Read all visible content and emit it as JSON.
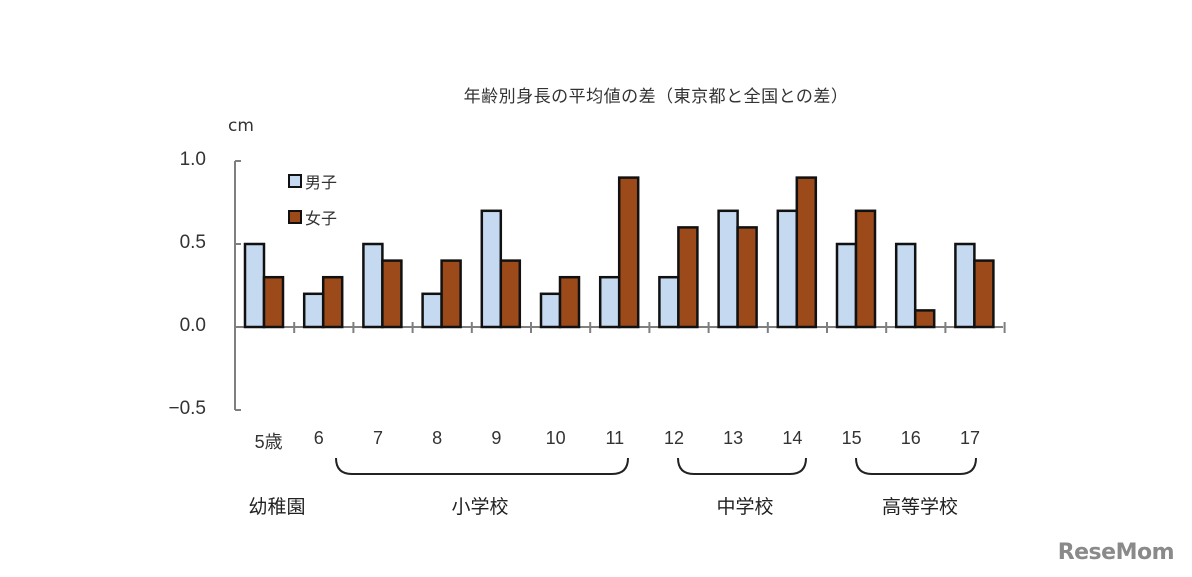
{
  "title": "年齢別身長の平均値の差（東京都と全国との差）",
  "unit": "cm",
  "legend": [
    {
      "label": "男子",
      "color": "#c5d9f1"
    },
    {
      "label": "女子",
      "color": "#9c4a1a"
    }
  ],
  "y_ticks": [
    "1.0",
    "0.5",
    "0.0",
    "−0.5"
  ],
  "x_labels": [
    "5歳",
    "6",
    "7",
    "8",
    "9",
    "10",
    "11",
    "12",
    "13",
    "14",
    "15",
    "16",
    "17"
  ],
  "school_groups": [
    {
      "label": "幼稚園"
    },
    {
      "label": "小学校"
    },
    {
      "label": "中学校"
    },
    {
      "label": "高等学校"
    }
  ],
  "logo": "ReseMom",
  "chart_data": {
    "type": "bar",
    "title": "年齢別身長の平均値の差（東京都と全国との差）",
    "xlabel": "",
    "ylabel": "cm",
    "ylim": [
      -0.5,
      1.0
    ],
    "y_ticks": [
      1.0,
      0.5,
      0.0,
      -0.5
    ],
    "grid": false,
    "legend_position": "upper-left inside",
    "categories": [
      "5歳",
      "6",
      "7",
      "8",
      "9",
      "10",
      "11",
      "12",
      "13",
      "14",
      "15",
      "16",
      "17"
    ],
    "category_groups": [
      {
        "label": "幼稚園",
        "categories": [
          "5歳"
        ]
      },
      {
        "label": "小学校",
        "categories": [
          "6",
          "7",
          "8",
          "9",
          "10",
          "11"
        ]
      },
      {
        "label": "中学校",
        "categories": [
          "12",
          "13",
          "14"
        ]
      },
      {
        "label": "高等学校",
        "categories": [
          "15",
          "16",
          "17"
        ]
      }
    ],
    "series": [
      {
        "name": "男子",
        "color": "#c5d9f1",
        "values": [
          0.5,
          0.2,
          0.5,
          0.2,
          0.7,
          0.2,
          0.3,
          0.3,
          0.7,
          0.7,
          0.5,
          0.5,
          0.5
        ]
      },
      {
        "name": "女子",
        "color": "#9c4a1a",
        "values": [
          0.3,
          0.3,
          0.4,
          0.4,
          0.4,
          0.3,
          0.9,
          0.6,
          0.6,
          0.9,
          0.7,
          0.1,
          0.4
        ]
      }
    ]
  }
}
